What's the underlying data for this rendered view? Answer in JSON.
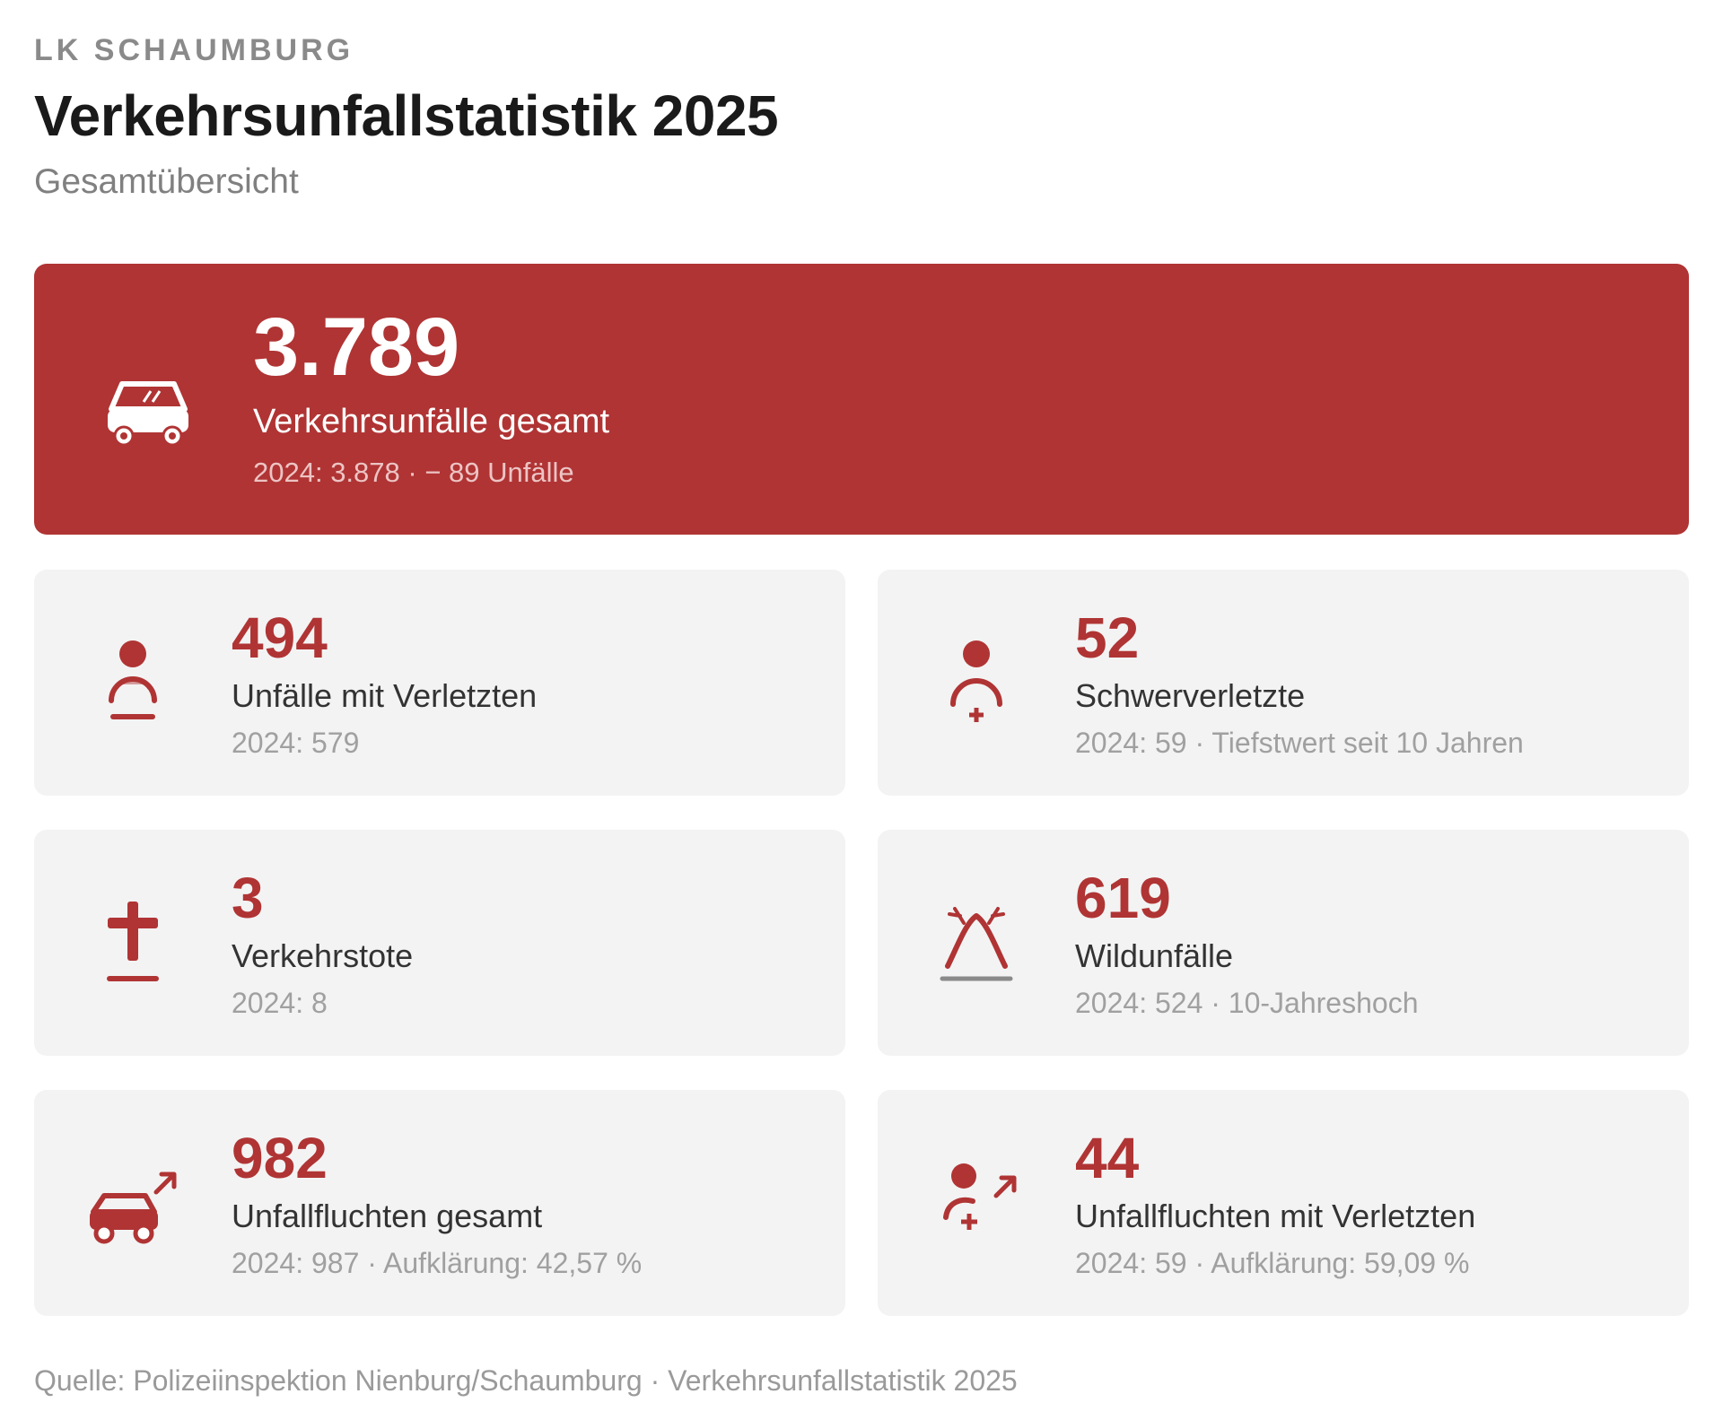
{
  "header": {
    "kicker": "LK SCHAUMBURG",
    "title": "Verkehrsunfallstatistik 2025",
    "subtitle": "Gesamtübersicht"
  },
  "colors": {
    "accent": "#b03434",
    "card_bg": "#f3f3f3",
    "muted": "#a0a0a0"
  },
  "hero": {
    "icon": "car-icon",
    "value": "3.789",
    "label": "Verkehrsunfälle gesamt",
    "comparison": "2024: 3.878 · − 89 Unfälle"
  },
  "cards": [
    {
      "icon": "injured-person-icon",
      "value": "494",
      "label": "Unfälle mit Verletzten",
      "comparison": "2024: 579"
    },
    {
      "icon": "seriously-injured-icon",
      "value": "52",
      "label": "Schwerverletzte",
      "comparison": "2024: 59 · Tiefstwert seit 10 Jahren"
    },
    {
      "icon": "cross-icon",
      "value": "3",
      "label": "Verkehrstote",
      "comparison": "2024: 8"
    },
    {
      "icon": "deer-antlers-icon",
      "value": "619",
      "label": "Wildunfälle",
      "comparison": "2024: 524 · 10-Jahreshoch"
    },
    {
      "icon": "car-fleeing-icon",
      "value": "982",
      "label": "Unfallfluchten gesamt",
      "comparison": "2024: 987 · Aufklärung: 42,57 %"
    },
    {
      "icon": "person-fleeing-icon",
      "value": "44",
      "label": "Unfallfluchten mit Verletzten",
      "comparison": "2024: 59 · Aufklärung: 59,09 %"
    }
  ],
  "source": "Quelle: Polizeiinspektion Nienburg/Schaumburg · Verkehrsunfallstatistik 2025"
}
